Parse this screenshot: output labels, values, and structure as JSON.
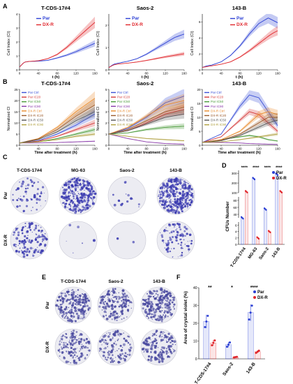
{
  "colors": {
    "par": "#2b3fd4",
    "dxr": "#e0262c",
    "band_par": "#9aa6ee",
    "band_dxr": "#f2a2a5",
    "dish": "#ececf2",
    "stain": "#3a3ab0",
    "stain_e": "#4a4aa0"
  },
  "panel_labels": [
    "A",
    "B",
    "C",
    "D",
    "E",
    "F"
  ],
  "panel_a": {
    "ylabel": "Cell Index (CI)",
    "xlabel": "t (h)",
    "legend": [
      "Par",
      "DX-R"
    ],
    "charts": [
      {
        "title": "T-CDS-17#4",
        "ylim": [
          0,
          4
        ],
        "yticks": [
          "0",
          "1",
          "2",
          "3",
          "4"
        ]
      },
      {
        "title": "Saos-2",
        "ylim": [
          0,
          2.5
        ],
        "yticks": [
          "0",
          "1",
          "2"
        ]
      },
      {
        "title": "143-B",
        "ylim": [
          0,
          7
        ],
        "yticks": [
          "0",
          "2",
          "4",
          "6"
        ]
      }
    ],
    "xticks": [
      "0",
      "40",
      "80",
      "120",
      "160"
    ]
  },
  "panel_b": {
    "ylabel": "Normalized CI",
    "xlabel": "Time after treatment (h)",
    "legend": [
      "Par Ctrl",
      "Par IC20",
      "Par IC50",
      "Par IC90",
      "DX-R Ctrl",
      "DX-R IC20",
      "DX-R IC50",
      "DX-R IC90"
    ],
    "legend_colors": [
      "#3a4fd6",
      "#d43a3a",
      "#4a9a3a",
      "#8a3aaa",
      "#e88a2a",
      "#9a5a2a",
      "#555555",
      "#b0a040"
    ],
    "charts": [
      {
        "title": "T-CDS-17#4",
        "ylim": [
          0,
          25
        ],
        "yticks": [
          "0",
          "5",
          "10",
          "15",
          "20",
          "25"
        ]
      },
      {
        "title": "Saos-2",
        "ylim": [
          0,
          5
        ],
        "yticks": [
          "0",
          "1",
          "2",
          "3",
          "4",
          "5"
        ]
      },
      {
        "title": "143-B",
        "ylim": [
          0,
          20
        ],
        "yticks": [
          "0",
          "5",
          "10",
          "15",
          "20"
        ]
      }
    ],
    "xticks": [
      "0",
      "40",
      "80",
      "120",
      "160"
    ]
  },
  "panel_c": {
    "columns": [
      "T-CDS-17#4",
      "MG-63",
      "Saos-2",
      "143-B"
    ],
    "rows": [
      "Par",
      "DX-R"
    ]
  },
  "panel_d": {
    "ylabel": "CFUs Number",
    "legend": [
      "Par",
      "DX-R"
    ],
    "sig": [
      "****",
      "****",
      "****",
      "****"
    ],
    "yticks_top": [
      "100",
      "200",
      "300"
    ],
    "yticks_mid": [
      "40",
      "60",
      "80"
    ],
    "yticks_low": [
      "0",
      "2",
      "4",
      "6"
    ]
  },
  "panel_e": {
    "columns": [
      "T-CDS-17#4",
      "Saos-2",
      "143-B"
    ],
    "rows": [
      "Par",
      "DX-R"
    ]
  },
  "panel_f": {
    "ylabel": "Area of crystal violet (%)",
    "legend": [
      "Par",
      "DX-R"
    ],
    "sig": [
      "**",
      "*",
      "****"
    ],
    "yticks": [
      "0",
      "10",
      "20",
      "30",
      "40"
    ]
  },
  "chart_data": [
    {
      "type": "line",
      "title": "T-CDS-17#4",
      "xlabel": "t (h)",
      "ylabel": "Cell Index (CI)",
      "xlim": [
        0,
        160
      ],
      "ylim": [
        0,
        4
      ],
      "x": [
        0,
        10,
        20,
        40,
        60,
        80,
        100,
        120,
        140,
        160
      ],
      "series": [
        {
          "name": "Par",
          "values": [
            0.2,
            0.55,
            0.6,
            0.62,
            0.68,
            0.85,
            1.05,
            1.3,
            1.6,
            1.9
          ]
        },
        {
          "name": "DX-R",
          "values": [
            0.2,
            0.55,
            0.6,
            0.65,
            0.8,
            1.1,
            1.6,
            2.2,
            2.8,
            3.4
          ]
        }
      ]
    },
    {
      "type": "line",
      "title": "Saos-2",
      "xlabel": "t (h)",
      "ylabel": "Cell Index (CI)",
      "xlim": [
        0,
        160
      ],
      "ylim": [
        0,
        2.5
      ],
      "x": [
        0,
        10,
        20,
        40,
        60,
        80,
        100,
        120,
        140,
        160
      ],
      "series": [
        {
          "name": "Par",
          "values": [
            0.1,
            0.25,
            0.3,
            0.38,
            0.5,
            0.7,
            0.95,
            1.2,
            1.45,
            1.6
          ]
        },
        {
          "name": "DX-R",
          "values": [
            0.1,
            0.22,
            0.26,
            0.3,
            0.35,
            0.42,
            0.5,
            0.58,
            0.65,
            0.72
          ]
        }
      ]
    },
    {
      "type": "line",
      "title": "143-B",
      "xlabel": "t (h)",
      "ylabel": "Cell Index (CI)",
      "xlim": [
        0,
        160
      ],
      "ylim": [
        0,
        7
      ],
      "x": [
        0,
        10,
        20,
        40,
        60,
        80,
        100,
        120,
        140,
        150,
        160
      ],
      "series": [
        {
          "name": "Par",
          "values": [
            0.3,
            0.5,
            0.6,
            1.0,
            1.8,
            3.0,
            4.5,
            5.8,
            6.5,
            6.2,
            5.9
          ]
        },
        {
          "name": "DX-R",
          "values": [
            0.3,
            0.4,
            0.5,
            0.7,
            1.0,
            1.6,
            2.4,
            3.3,
            4.2,
            4.6,
            4.9
          ]
        }
      ]
    },
    {
      "type": "line",
      "title": "T-CDS-17#4",
      "xlabel": "Time after treatment (h)",
      "ylabel": "Normalized CI",
      "xlim": [
        0,
        160
      ],
      "ylim": [
        0,
        25
      ],
      "x": [
        0,
        40,
        80,
        120,
        160
      ],
      "series": [
        {
          "name": "Par Ctrl",
          "values": [
            1,
            2,
            5,
            9,
            14
          ]
        },
        {
          "name": "Par IC20",
          "values": [
            1,
            1.8,
            4,
            7,
            10
          ]
        },
        {
          "name": "Par IC50",
          "values": [
            1,
            1.5,
            3,
            5,
            7
          ]
        },
        {
          "name": "Par IC90",
          "values": [
            1,
            1,
            1.2,
            1.5,
            1.8
          ]
        },
        {
          "name": "DX-R Ctrl",
          "values": [
            1,
            3,
            8,
            15,
            21
          ]
        },
        {
          "name": "DX-R IC20",
          "values": [
            1,
            2.8,
            7,
            13,
            18
          ]
        },
        {
          "name": "DX-R IC50",
          "values": [
            1,
            2.5,
            6,
            11,
            15
          ]
        },
        {
          "name": "DX-R IC90",
          "values": [
            1,
            1.5,
            2.5,
            4,
            5
          ]
        }
      ]
    },
    {
      "type": "line",
      "title": "Saos-2",
      "xlabel": "Time after treatment (h)",
      "ylabel": "Normalized CI",
      "xlim": [
        0,
        160
      ],
      "ylim": [
        0,
        5
      ],
      "x": [
        0,
        40,
        80,
        120,
        160
      ],
      "series": [
        {
          "name": "Par Ctrl",
          "values": [
            1,
            1.5,
            2.5,
            3.8,
            4.4
          ]
        },
        {
          "name": "Par IC20",
          "values": [
            1,
            1.3,
            2,
            2.8,
            3.2
          ]
        },
        {
          "name": "Par IC50",
          "values": [
            1,
            1.1,
            1.4,
            1.6,
            1.7
          ]
        },
        {
          "name": "Par IC90",
          "values": [
            1,
            0.6,
            0.3,
            0.15,
            0.1
          ]
        },
        {
          "name": "DX-R Ctrl",
          "values": [
            1,
            1.6,
            2.6,
            3.6,
            4.0
          ]
        },
        {
          "name": "DX-R IC20",
          "values": [
            1,
            1.4,
            2.2,
            3.0,
            3.4
          ]
        },
        {
          "name": "DX-R IC50",
          "values": [
            1,
            1.3,
            1.9,
            2.5,
            2.8
          ]
        },
        {
          "name": "DX-R IC90",
          "values": [
            1,
            0.8,
            0.6,
            0.5,
            0.4
          ]
        }
      ]
    },
    {
      "type": "line",
      "title": "143-B",
      "xlabel": "Time after treatment (h)",
      "ylabel": "Normalized CI",
      "xlim": [
        0,
        160
      ],
      "ylim": [
        0,
        20
      ],
      "x": [
        0,
        40,
        80,
        100,
        120,
        140,
        160
      ],
      "series": [
        {
          "name": "Par Ctrl",
          "values": [
            1,
            4,
            14,
            18,
            17,
            12,
            7
          ]
        },
        {
          "name": "Par IC20",
          "values": [
            1,
            3,
            9,
            12,
            11,
            8,
            5
          ]
        },
        {
          "name": "Par IC50",
          "values": [
            1,
            2,
            3,
            3.5,
            3,
            2,
            1.5
          ]
        },
        {
          "name": "Par IC90",
          "values": [
            1,
            1,
            0.8,
            0.6,
            0.5,
            0.4,
            0.3
          ]
        },
        {
          "name": "DX-R Ctrl",
          "values": [
            1,
            2,
            5,
            8,
            11,
            12,
            11
          ]
        },
        {
          "name": "DX-R IC20",
          "values": [
            1,
            1.8,
            4,
            6,
            8,
            10,
            10
          ]
        },
        {
          "name": "DX-R IC50",
          "values": [
            1,
            1.6,
            3.5,
            5,
            6.5,
            8,
            9
          ]
        },
        {
          "name": "DX-R IC90",
          "values": [
            1,
            1.2,
            2,
            2.5,
            3,
            3.5,
            4
          ]
        }
      ]
    },
    {
      "type": "bar",
      "title": "",
      "ylabel": "CFUs Number",
      "categories": [
        "T-CDS-17#4",
        "MG-63",
        "Saos-2",
        "143-B"
      ],
      "series": [
        {
          "name": "Par",
          "values": [
            25,
            245,
            55,
            290
          ]
        },
        {
          "name": "DX-R",
          "values": [
            110,
            2,
            4,
            110
          ]
        }
      ]
    },
    {
      "type": "bar",
      "title": "",
      "ylabel": "Area of crystal violet (%)",
      "ylim": [
        0,
        40
      ],
      "categories": [
        "T-CDS-17#4",
        "Saos-2",
        "143-B"
      ],
      "series": [
        {
          "name": "Par",
          "values": [
            21,
            8,
            26
          ]
        },
        {
          "name": "DX-R",
          "values": [
            9,
            1,
            4
          ]
        }
      ]
    }
  ]
}
